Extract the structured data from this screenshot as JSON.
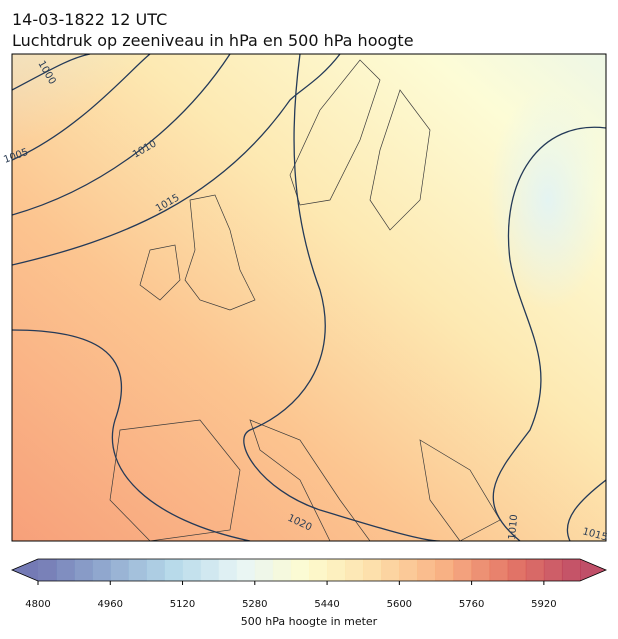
{
  "header": {
    "title": [
      "14-03-1822 12 UTC",
      "Luchtdruk op zeeniveau in hPa en 500 hPa hoogte"
    ]
  },
  "map": {
    "contour_labels": [
      "1000",
      "1005",
      "1010",
      "1015",
      "1020",
      "1010",
      "1015"
    ]
  },
  "colorbar": {
    "label": "500 hPa hoogte in meter",
    "range": [
      4800,
      6000
    ],
    "ticks": [
      4800,
      4960,
      5120,
      5280,
      5440,
      5600,
      5760,
      5920
    ],
    "colors": [
      "#5c63a8",
      "#7f9cc8",
      "#abd3e6",
      "#e4f3f4",
      "#fdfbc6",
      "#fdd89a",
      "#f7a36f",
      "#df5e4c",
      "#b5304d"
    ]
  }
}
